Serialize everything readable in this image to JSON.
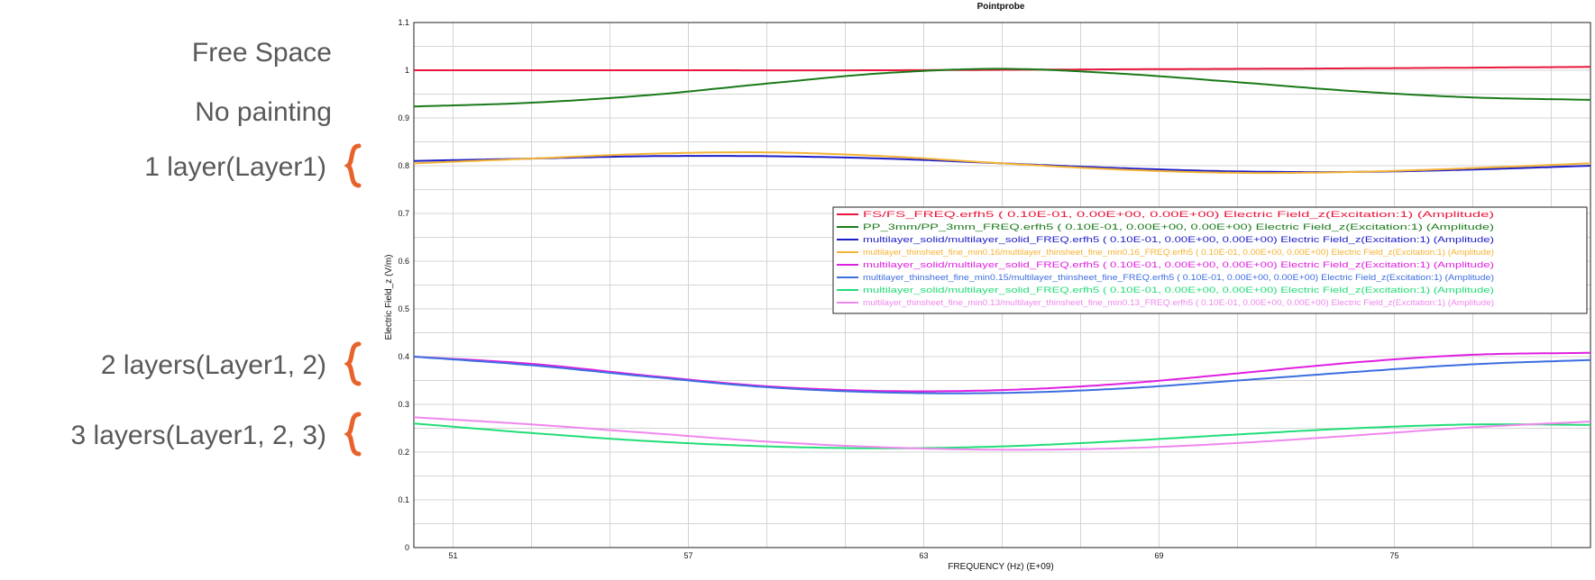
{
  "annotations": [
    {
      "label": "Free Space",
      "brace": false
    },
    {
      "label": "No painting",
      "brace": false
    },
    {
      "label": "1 layer(Layer1)",
      "brace": true
    },
    {
      "label": "2 layers(Layer1, 2)",
      "brace": true
    },
    {
      "label": "3 layers(Layer1, 2, 3)",
      "brace": true
    }
  ],
  "colors": {
    "brace": "#E8632B",
    "annotation_text": "#595959",
    "grid": "#d4d4d4"
  },
  "chart_data": {
    "type": "line",
    "title": "Pointprobe",
    "xlabel": "FREQUENCY (Hz) (E+09)",
    "ylabel": "Electric Field_z (V/m)",
    "xlim": [
      50,
      80
    ],
    "ylim": [
      0,
      1.1
    ],
    "xticks": [
      51,
      57,
      63,
      69,
      75
    ],
    "yticks": [
      0,
      0.1,
      0.2,
      0.3,
      0.4,
      0.5,
      0.6,
      0.7,
      0.8,
      0.9,
      1,
      1.1
    ],
    "ytick_labels": [
      "0",
      "0.1",
      "0.2",
      "0.3",
      "0.4",
      "0.5",
      "0.6",
      "0.7",
      "0.8",
      "0.9",
      "1",
      "1.1"
    ],
    "grid": true,
    "legend_position": "center-right",
    "series": [
      {
        "name": "FS/FS_FREQ.erfh5 ( 0.10E-01,  0.00E+00,  0.00E+00) Electric Field_z(Excitation:1) (Amplitude)",
        "color": "#e8173b",
        "x": [
          50,
          56,
          62,
          68,
          74,
          80
        ],
        "y": [
          1.0,
          1.0,
          1.0,
          1.002,
          1.004,
          1.007
        ]
      },
      {
        "name": "PP_3mm/PP_3mm_FREQ.erfh5 ( 0.10E-01,  0.00E+00,  0.00E+00) Electric Field_z(Excitation:1) (Amplitude)",
        "color": "#1a7a1a",
        "x": [
          50,
          53,
          56,
          59,
          62,
          65,
          68,
          71,
          74,
          77,
          80
        ],
        "y": [
          0.924,
          0.932,
          0.948,
          0.972,
          0.994,
          1.003,
          0.993,
          0.975,
          0.956,
          0.943,
          0.938
        ]
      },
      {
        "name": "multilayer_solid/multilayer_solid_FREQ.erfh5 ( 0.10E-01,  0.00E+00,  0.00E+00) Electric Field_z(Excitation:1) (Amplitude)",
        "color": "#1c1cc8",
        "x": [
          50,
          53,
          56,
          59,
          62,
          65,
          68,
          71,
          74,
          77,
          80
        ],
        "y": [
          0.81,
          0.815,
          0.82,
          0.82,
          0.815,
          0.805,
          0.795,
          0.788,
          0.787,
          0.792,
          0.8
        ]
      },
      {
        "name": "multilayer_thinsheet_fine_min0.16/multilayer_thinsheet_fine_min0.16_FREQ.erfh5 ( 0.10E-01,  0.00E+00,  0.00E+00) Electric Field_z(Excitation:1) (Amplitude)",
        "color": "#f5b335",
        "x": [
          50,
          53,
          56,
          59,
          62,
          65,
          68,
          71,
          74,
          77,
          80
        ],
        "y": [
          0.805,
          0.815,
          0.825,
          0.828,
          0.82,
          0.805,
          0.792,
          0.785,
          0.787,
          0.795,
          0.805
        ]
      },
      {
        "name": "multilayer_solid/multilayer_solid_FREQ.erfh5 ( 0.10E-01,  0.00E+00,  0.00E+00) Electric Field_z(Excitation:1) (Amplitude)",
        "color": "#e020e0",
        "x": [
          50,
          53,
          56,
          59,
          62,
          65,
          68,
          71,
          74,
          77,
          80
        ],
        "y": [
          0.4,
          0.385,
          0.36,
          0.338,
          0.328,
          0.33,
          0.343,
          0.365,
          0.388,
          0.404,
          0.408
        ]
      },
      {
        "name": "multilayer_thinsheet_fine_min0.15/multilayer_thinsheet_fine_FREQ.erfh5 ( 0.10E-01,  0.00E+00,  0.00E+00) Electric Field_z(Excitation:1) (Amplitude)",
        "color": "#3c6ee0",
        "x": [
          50,
          53,
          56,
          59,
          62,
          65,
          68,
          71,
          74,
          77,
          80
        ],
        "y": [
          0.4,
          0.382,
          0.358,
          0.336,
          0.325,
          0.324,
          0.333,
          0.35,
          0.368,
          0.384,
          0.393
        ]
      },
      {
        "name": "multilayer_solid/multilayer_solid_FREQ.erfh5 ( 0.10E-01,  0.00E+00,  0.00E+00) Electric Field_z(Excitation:1) (Amplitude)",
        "color": "#22dd77",
        "x": [
          50,
          53,
          56,
          59,
          62,
          65,
          68,
          71,
          74,
          77,
          80
        ],
        "y": [
          0.26,
          0.24,
          0.223,
          0.212,
          0.208,
          0.212,
          0.223,
          0.237,
          0.25,
          0.258,
          0.257
        ]
      },
      {
        "name": "multilayer_thinsheet_fine_min0.13/multilayer_thinsheet_fine_min0.13_FREQ.erfh5 ( 0.10E-01,  0.00E+00,  0.00E+00) Electric Field_z(Excitation:1) (Amplitude)",
        "color": "#ee88ee",
        "x": [
          50,
          53,
          56,
          59,
          62,
          65,
          68,
          71,
          74,
          77,
          80
        ],
        "y": [
          0.273,
          0.258,
          0.24,
          0.222,
          0.21,
          0.205,
          0.208,
          0.219,
          0.235,
          0.252,
          0.264
        ]
      }
    ]
  }
}
